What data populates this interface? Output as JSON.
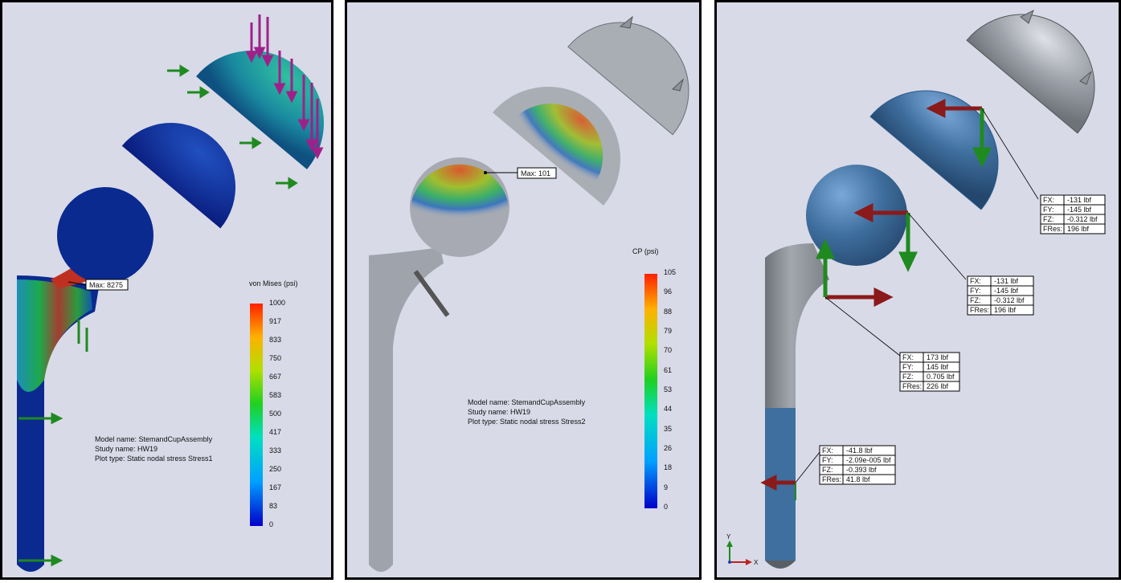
{
  "panels": [
    {
      "legend_title": "von Mises (psi)",
      "legend_ticks": [
        "1000",
        "917",
        "833",
        "750",
        "667",
        "583",
        "500",
        "417",
        "333",
        "250",
        "167",
        "83",
        "0"
      ],
      "max_label": "Max: 8275",
      "info": [
        "Model name: StemandCupAssembly",
        "Study name: HW19",
        "Plot type: Static nodal stress Stress1"
      ]
    },
    {
      "legend_title": "CP (psi)",
      "legend_ticks": [
        "105",
        "96",
        "88",
        "79",
        "70",
        "61",
        "53",
        "44",
        "35",
        "26",
        "18",
        "9",
        "0"
      ],
      "max_label": "Max: 101",
      "info": [
        "Model name: StemandCupAssembly",
        "Study name: HW19",
        "Plot type: Static nodal stress Stress2"
      ]
    },
    {
      "force_tables": [
        {
          "rows": [
            [
              "FX:",
              "-131 lbf"
            ],
            [
              "FY:",
              "-145 lbf"
            ],
            [
              "FZ:",
              "-0.312 lbf"
            ],
            [
              "FRes:",
              "196 lbf"
            ]
          ]
        },
        {
          "rows": [
            [
              "FX:",
              "-131 lbf"
            ],
            [
              "FY:",
              "-145 lbf"
            ],
            [
              "FZ:",
              "-0.312 lbf"
            ],
            [
              "FRes:",
              "196 lbf"
            ]
          ]
        },
        {
          "rows": [
            [
              "FX:",
              "173 lbf"
            ],
            [
              "FY:",
              "145 lbf"
            ],
            [
              "FZ:",
              "0.705 lbf"
            ],
            [
              "FRes:",
              "226 lbf"
            ]
          ]
        },
        {
          "rows": [
            [
              "FX:",
              "-41.8 lbf"
            ],
            [
              "FY:",
              "-2.09e-005 lbf"
            ],
            [
              "FZ:",
              "-0.393 lbf"
            ],
            [
              "FRes:",
              "41.8 lbf"
            ]
          ]
        }
      ],
      "axis_labels": [
        "Y",
        "X"
      ]
    }
  ],
  "colors": {
    "background": "#d8dae7",
    "force_arrow_red": "#8b1a1a",
    "force_arrow_green": "#1f8a1f",
    "load_arrow_purple": "#a0208a",
    "part_blue": "#3f6f9e",
    "part_gray": "#8f939b"
  }
}
